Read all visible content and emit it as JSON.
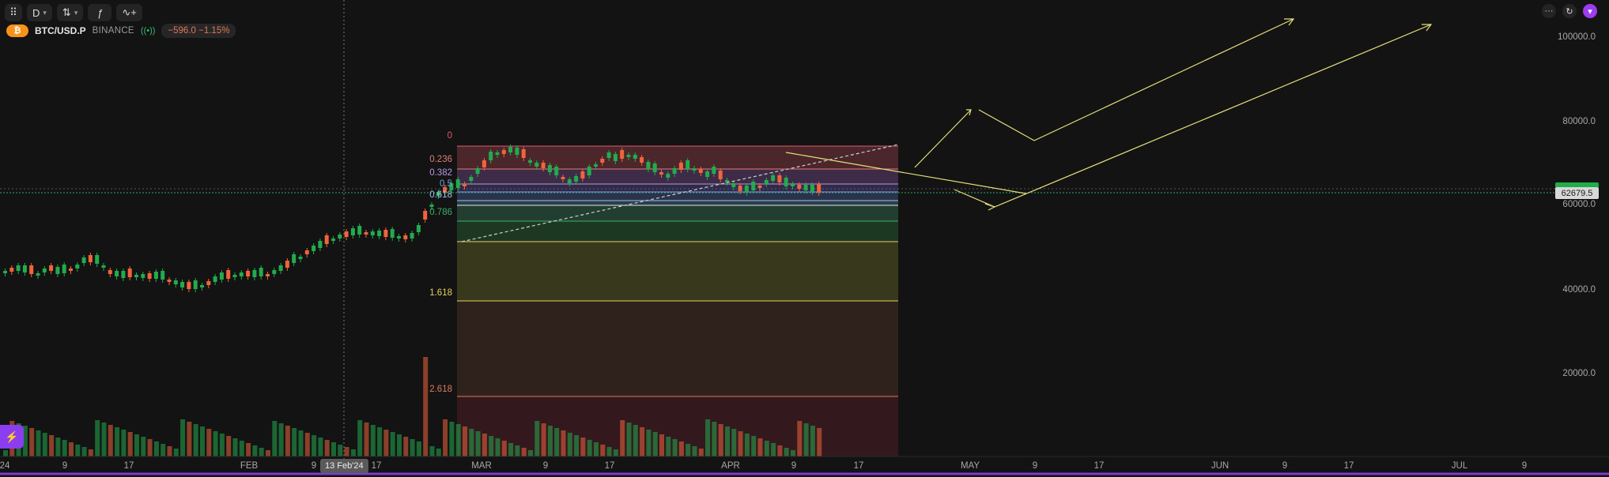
{
  "toolbar": {
    "grid_label": "⠿",
    "interval": "D",
    "interval_caret": "▾",
    "compare_icon": "⇅",
    "compare_caret": "▾",
    "indicators_icon": "ƒ",
    "alerts_icon": "∿+"
  },
  "symbol": {
    "coin_icon": "₿",
    "name": "BTC/USD.P",
    "exchange": "BINANCE",
    "live_icon": "((•))",
    "change": "−596.0 −1.15%"
  },
  "right_tools": {
    "more": "···",
    "camera": "↻",
    "profile": "▾"
  },
  "left_badge_icon": "⚡",
  "price_axis": {
    "labels": [
      "100000.0",
      "80000.0",
      "60000.0",
      "40000.0",
      "20000.0"
    ],
    "last_price": "62679.5"
  },
  "time_axis": {
    "labels": [
      "24",
      "9",
      "17",
      "FEB",
      "9",
      "17",
      "MAR",
      "9",
      "17",
      "APR",
      "9",
      "17",
      "MAY",
      "9",
      "17",
      "JUN",
      "9",
      "17",
      "JUL",
      "9"
    ],
    "crosshair_date": "13 Feb'24"
  },
  "fib_levels": [
    {
      "label": "0",
      "color": "#e05a6b"
    },
    {
      "label": "0.236",
      "color": "#e07a7a"
    },
    {
      "label": "0.382",
      "color": "#b898e0"
    },
    {
      "label": "0.5",
      "color": "#7a9ae0"
    },
    {
      "label": "0.618",
      "color": "#9ac4f0"
    },
    {
      "label": "0.786",
      "color": "#3ab06a"
    },
    {
      "label": "1.618",
      "color": "#e6d25a"
    },
    {
      "label": "2.618",
      "color": "#e07a5a"
    }
  ],
  "colors": {
    "up": "#22ab4e",
    "down": "#f0643c",
    "background": "#131313",
    "drawing": "#e6e07a"
  }
}
